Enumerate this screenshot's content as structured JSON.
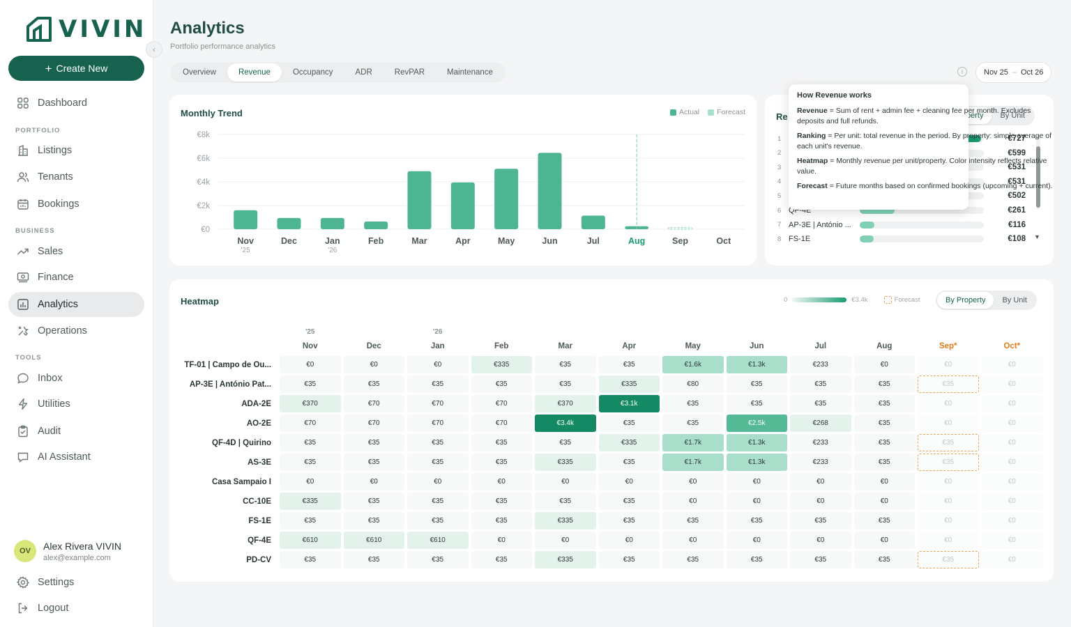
{
  "brand": {
    "name": "VIVIN"
  },
  "sidebar": {
    "create_label": "Create New",
    "items": [
      {
        "label": "Dashboard",
        "icon": "grid-icon"
      },
      {
        "section": "PORTFOLIO"
      },
      {
        "label": "Listings",
        "icon": "building-icon"
      },
      {
        "label": "Tenants",
        "icon": "users-icon"
      },
      {
        "label": "Bookings",
        "icon": "calendar-icon"
      },
      {
        "section": "BUSINESS"
      },
      {
        "label": "Sales",
        "icon": "trend-icon"
      },
      {
        "label": "Finance",
        "icon": "banknote-icon"
      },
      {
        "label": "Analytics",
        "icon": "chart-icon",
        "active": true
      },
      {
        "label": "Operations",
        "icon": "tools-icon"
      },
      {
        "section": "TOOLS"
      },
      {
        "label": "Inbox",
        "icon": "chat-icon"
      },
      {
        "label": "Utilities",
        "icon": "bolt-icon"
      },
      {
        "label": "Audit",
        "icon": "clipboard-icon"
      },
      {
        "label": "AI Assistant",
        "icon": "ai-chat-icon"
      }
    ],
    "user": {
      "initials": "OV",
      "name": "Alex Rivera VIVIN",
      "email": "alex@example.com"
    },
    "settings_label": "Settings",
    "logout_label": "Logout"
  },
  "page": {
    "title": "Analytics",
    "subtitle": "Portfolio performance analytics",
    "tabs": [
      "Overview",
      "Revenue",
      "Occupancy",
      "ADR",
      "RevPAR",
      "Maintenance"
    ],
    "active_tab": "Revenue",
    "date_from": "Nov 25",
    "date_to": "Oct 26"
  },
  "trend": {
    "title": "Monthly Trend",
    "legend_actual": "Actual",
    "legend_forecast": "Forecast",
    "colors": {
      "actual": "#4db591",
      "forecast": "#a8e0cc",
      "highlight": "#1a9a72"
    }
  },
  "chart_data": {
    "type": "bar",
    "categories": [
      "Nov",
      "Dec",
      "Jan",
      "Feb",
      "Mar",
      "Apr",
      "May",
      "Jun",
      "Jul",
      "Aug",
      "Sep",
      "Oct"
    ],
    "year_labels": {
      "Nov": "'25",
      "Jan": "'26"
    },
    "series": [
      {
        "name": "Actual",
        "values": [
          1600,
          950,
          950,
          650,
          4900,
          3950,
          5100,
          6450,
          1150,
          250,
          0,
          0
        ]
      },
      {
        "name": "Forecast",
        "values": [
          0,
          0,
          0,
          0,
          0,
          0,
          0,
          0,
          0,
          0,
          150,
          0
        ]
      }
    ],
    "yticks": [
      "€0",
      "€2k",
      "€4k",
      "€6k",
      "€8k"
    ],
    "ylim": [
      0,
      8000
    ],
    "highlight_category": "Aug"
  },
  "ranking": {
    "title_visible": "Re",
    "toggle": [
      "By Property",
      "By Unit"
    ],
    "toggle_visible": [
      "perty",
      "By Unit"
    ],
    "rows": [
      {
        "rank": "1",
        "name": "",
        "value": "€727",
        "pct": 0.98
      },
      {
        "rank": "2",
        "name": "",
        "value": "€599",
        "pct": 0.82
      },
      {
        "rank": "3",
        "name": "",
        "value": "€531",
        "pct": 0.73
      },
      {
        "rank": "4",
        "name": "",
        "value": "€531",
        "pct": 0.73
      },
      {
        "rank": "5",
        "name": "",
        "value": "€502",
        "pct": 0.69
      },
      {
        "rank": "6",
        "name": "QF-4E",
        "value": "€261",
        "pct": 0.28
      },
      {
        "rank": "7",
        "name": "AP-3E | António ...",
        "value": "€116",
        "pct": 0.12
      },
      {
        "rank": "8",
        "name": "FS-1E",
        "value": "€108",
        "pct": 0.11
      }
    ]
  },
  "tooltip": {
    "title": "How Revenue works",
    "lines": [
      {
        "term": "Revenue",
        "text": " = Sum of rent + admin fee + cleaning fee per month. Excludes deposits and full refunds."
      },
      {
        "term": "Ranking",
        "text": " = Per unit: total revenue in the period. By property: simple average of each unit's revenue."
      },
      {
        "term": "Heatmap",
        "text": " = Monthly revenue per unit/property. Color intensity reflects relative value."
      },
      {
        "term": "Forecast",
        "text": " = Future months based on confirmed bookings (upcoming + current)."
      }
    ]
  },
  "heatmap": {
    "title": "Heatmap",
    "scale_min": "0",
    "scale_max": "€3.4k",
    "forecast_label": "Forecast",
    "toggle": [
      "By Property",
      "By Unit"
    ],
    "year_labels": [
      "'25",
      "",
      "'26",
      "",
      "",
      "",
      "",
      "",
      "",
      "",
      "",
      ""
    ],
    "months": [
      "Nov",
      "Dec",
      "Jan",
      "Feb",
      "Mar",
      "Apr",
      "May",
      "Jun",
      "Jul",
      "Aug",
      "Sep*",
      "Oct*"
    ],
    "forecast_cols": [
      10,
      11
    ],
    "rows": [
      {
        "label": "TF-01 | Campo de Ou...",
        "cells": [
          "€0",
          "€0",
          "€0",
          "€335",
          "€35",
          "€35",
          "€1.6k",
          "€1.3k",
          "€233",
          "€0",
          "€0",
          "€0"
        ],
        "levels": [
          0,
          0,
          0,
          1,
          0,
          0,
          2,
          2,
          0,
          0,
          0,
          0
        ],
        "fdash": [
          false,
          false
        ]
      },
      {
        "label": "AP-3E | António Pat...",
        "cells": [
          "€35",
          "€35",
          "€35",
          "€35",
          "€35",
          "€335",
          "€80",
          "€35",
          "€35",
          "€35",
          "€35",
          "€0"
        ],
        "levels": [
          0,
          0,
          0,
          0,
          0,
          1,
          0,
          0,
          0,
          0,
          0,
          0
        ],
        "fdash": [
          true,
          false
        ]
      },
      {
        "label": "ADA-2E",
        "cells": [
          "€370",
          "€70",
          "€70",
          "€70",
          "€370",
          "€3.1k",
          "€35",
          "€35",
          "€35",
          "€35",
          "€0",
          "€0"
        ],
        "levels": [
          1,
          0,
          0,
          0,
          1,
          4,
          0,
          0,
          0,
          0,
          0,
          0
        ],
        "fdash": [
          false,
          false
        ]
      },
      {
        "label": "AO-2E",
        "cells": [
          "€70",
          "€70",
          "€70",
          "€70",
          "€3.4k",
          "€35",
          "€35",
          "€2.5k",
          "€268",
          "€35",
          "€0",
          "€0"
        ],
        "levels": [
          0,
          0,
          0,
          0,
          4,
          0,
          0,
          3,
          1,
          0,
          0,
          0
        ],
        "fdash": [
          false,
          false
        ]
      },
      {
        "label": "QF-4D | Quirino",
        "cells": [
          "€35",
          "€35",
          "€35",
          "€35",
          "€35",
          "€335",
          "€1.7k",
          "€1.3k",
          "€233",
          "€35",
          "€35",
          "€0"
        ],
        "levels": [
          0,
          0,
          0,
          0,
          0,
          1,
          2,
          2,
          0,
          0,
          0,
          0
        ],
        "fdash": [
          true,
          false
        ]
      },
      {
        "label": "AS-3E",
        "cells": [
          "€35",
          "€35",
          "€35",
          "€35",
          "€335",
          "€35",
          "€1.7k",
          "€1.3k",
          "€233",
          "€35",
          "€35",
          "€0"
        ],
        "levels": [
          0,
          0,
          0,
          0,
          1,
          0,
          2,
          2,
          0,
          0,
          0,
          0
        ],
        "fdash": [
          true,
          false
        ]
      },
      {
        "label": "Casa Sampaio I",
        "cells": [
          "€0",
          "€0",
          "€0",
          "€0",
          "€0",
          "€0",
          "€0",
          "€0",
          "€0",
          "€0",
          "€0",
          "€0"
        ],
        "levels": [
          0,
          0,
          0,
          0,
          0,
          0,
          0,
          0,
          0,
          0,
          0,
          0
        ],
        "fdash": [
          false,
          false
        ]
      },
      {
        "label": "CC-10E",
        "cells": [
          "€335",
          "€35",
          "€35",
          "€35",
          "€35",
          "€35",
          "€0",
          "€0",
          "€0",
          "€0",
          "€0",
          "€0"
        ],
        "levels": [
          1,
          0,
          0,
          0,
          0,
          0,
          0,
          0,
          0,
          0,
          0,
          0
        ],
        "fdash": [
          false,
          false
        ]
      },
      {
        "label": "FS-1E",
        "cells": [
          "€35",
          "€35",
          "€35",
          "€35",
          "€335",
          "€35",
          "€35",
          "€35",
          "€35",
          "€35",
          "€0",
          "€0"
        ],
        "levels": [
          0,
          0,
          0,
          0,
          1,
          0,
          0,
          0,
          0,
          0,
          0,
          0
        ],
        "fdash": [
          false,
          false
        ]
      },
      {
        "label": "QF-4E",
        "cells": [
          "€610",
          "€610",
          "€610",
          "€0",
          "€0",
          "€0",
          "€0",
          "€0",
          "€0",
          "€0",
          "€0",
          "€0"
        ],
        "levels": [
          1,
          1,
          1,
          0,
          0,
          0,
          0,
          0,
          0,
          0,
          0,
          0
        ],
        "fdash": [
          false,
          false
        ]
      },
      {
        "label": "PD-CV",
        "cells": [
          "€35",
          "€35",
          "€35",
          "€35",
          "€335",
          "€35",
          "€35",
          "€35",
          "€35",
          "€35",
          "€35",
          "€0"
        ],
        "levels": [
          0,
          0,
          0,
          0,
          1,
          0,
          0,
          0,
          0,
          0,
          0,
          0
        ],
        "fdash": [
          true,
          false
        ]
      }
    ],
    "level_colors": [
      "#f7f9f9",
      "#e3f3ec",
      "#a9decb",
      "#56b996",
      "#138a63"
    ]
  }
}
